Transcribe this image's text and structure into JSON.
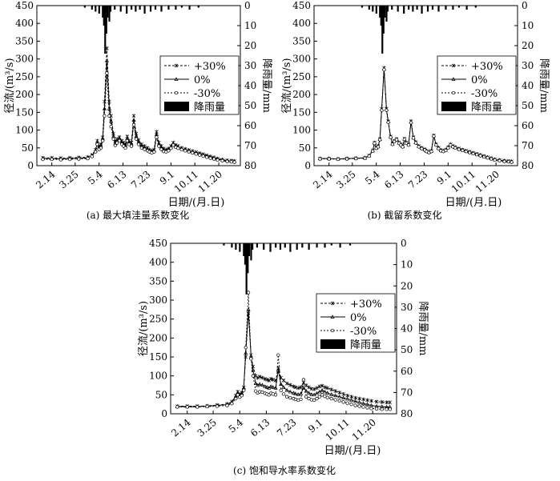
{
  "chart_data": [
    {
      "type": "line",
      "panel_caption": "(a) 最大填洼量系数变化",
      "xlabel": "日期/(月.日)",
      "ylabel": "径流/(m³/s)",
      "y2label": "降雨量/mm",
      "x_ticks": [
        "2.14",
        "3.25",
        "5.4",
        "6.13",
        "7.23",
        "9.1",
        "10.11",
        "11.20"
      ],
      "ylim": [
        0,
        450
      ],
      "y_ticks": [
        0,
        50,
        100,
        150,
        200,
        250,
        300,
        350,
        400,
        450
      ],
      "y2lim": [
        0,
        80
      ],
      "y2_ticks": [
        0,
        10,
        20,
        30,
        40,
        50,
        60,
        70,
        80
      ],
      "legend_position": "right",
      "legend": [
        "+30%",
        "0%",
        "-30%",
        "降雨量"
      ],
      "x": [
        30,
        45,
        60,
        75,
        90,
        105,
        112,
        118,
        121,
        124,
        127,
        130,
        133,
        137,
        141,
        144,
        148,
        151,
        154,
        158,
        162,
        165,
        168,
        171,
        174,
        178,
        182,
        186,
        190,
        195,
        200,
        205,
        208,
        212,
        216,
        220,
        224,
        228,
        232,
        236,
        240,
        244,
        248,
        252,
        256,
        262,
        268,
        274,
        280,
        286,
        292,
        298,
        304,
        310,
        316,
        322,
        330,
        338,
        345,
        350
      ],
      "series": [
        {
          "name": "+30%",
          "values": [
            22,
            22,
            21,
            22,
            23,
            24,
            30,
            45,
            70,
            55,
            60,
            80,
            180,
            330,
            180,
            140,
            90,
            68,
            75,
            80,
            70,
            65,
            60,
            82,
            70,
            65,
            140,
            90,
            72,
            60,
            55,
            50,
            45,
            42,
            45,
            95,
            65,
            55,
            48,
            45,
            48,
            55,
            65,
            58,
            55,
            50,
            47,
            44,
            41,
            38,
            35,
            32,
            29,
            26,
            23,
            20,
            17,
            15,
            14,
            13
          ]
        },
        {
          "name": "0%",
          "values": [
            20,
            20,
            19,
            20,
            21,
            22,
            28,
            42,
            65,
            50,
            55,
            75,
            160,
            295,
            160,
            125,
            82,
            62,
            70,
            75,
            65,
            60,
            55,
            76,
            65,
            60,
            128,
            82,
            66,
            55,
            50,
            46,
            42,
            39,
            42,
            88,
            60,
            50,
            44,
            42,
            45,
            52,
            62,
            55,
            52,
            48,
            45,
            42,
            39,
            36,
            33,
            30,
            27,
            24,
            21,
            18,
            16,
            14,
            13,
            12
          ]
        },
        {
          "name": "-30%",
          "values": [
            18,
            18,
            17,
            18,
            19,
            20,
            26,
            39,
            60,
            46,
            50,
            70,
            140,
            260,
            140,
            110,
            75,
            57,
            64,
            70,
            60,
            55,
            50,
            70,
            60,
            55,
            115,
            75,
            60,
            50,
            46,
            42,
            39,
            36,
            39,
            80,
            55,
            46,
            40,
            39,
            42,
            49,
            58,
            52,
            49,
            45,
            42,
            39,
            36,
            33,
            30,
            27,
            24,
            21,
            19,
            16,
            14,
            12,
            11,
            10
          ]
        }
      ],
      "rainfall": {
        "name": "降雨量",
        "unit": "mm",
        "x": [
          100,
          112,
          118,
          124,
          130,
          132,
          134,
          136,
          138,
          141,
          143,
          150,
          160,
          170,
          178,
          185,
          192,
          200,
          210,
          218,
          228,
          240,
          252,
          262,
          275,
          290
        ],
        "values": [
          1,
          2,
          3,
          4,
          6,
          10,
          24,
          14,
          6,
          8,
          3,
          2,
          3,
          4,
          2,
          3,
          2,
          4,
          3,
          2,
          3,
          2,
          2,
          1,
          2,
          1
        ]
      }
    },
    {
      "type": "line",
      "panel_caption": "(b) 截留系数变化",
      "xlabel": "日期/(月.日)",
      "ylabel": "径流/(m³/s)",
      "y2label": "降雨量/mm",
      "x_ticks": [
        "2.14",
        "3.25",
        "5.4",
        "6.13",
        "7.23",
        "9.1",
        "10.11",
        "11.20"
      ],
      "ylim": [
        0,
        450
      ],
      "y_ticks": [
        0,
        50,
        100,
        150,
        200,
        250,
        300,
        350,
        400,
        450
      ],
      "y2lim": [
        0,
        80
      ],
      "y2_ticks": [
        0,
        10,
        20,
        30,
        40,
        50,
        60,
        70,
        80
      ],
      "legend_position": "right",
      "legend": [
        "+30%",
        "0%",
        "-30%",
        "降雨量"
      ],
      "x": [
        30,
        45,
        60,
        75,
        90,
        105,
        112,
        118,
        121,
        124,
        127,
        130,
        133,
        137,
        141,
        144,
        148,
        151,
        154,
        158,
        162,
        165,
        168,
        171,
        174,
        178,
        182,
        186,
        190,
        195,
        200,
        205,
        208,
        212,
        216,
        220,
        224,
        228,
        232,
        236,
        240,
        244,
        248,
        252,
        256,
        262,
        268,
        274,
        280,
        286,
        292,
        298,
        304,
        310,
        316,
        322,
        330,
        338,
        345,
        350
      ],
      "series": [
        {
          "name": "+30%",
          "values": [
            20,
            20,
            19,
            20,
            21,
            22,
            28,
            42,
            65,
            50,
            55,
            75,
            160,
            275,
            160,
            125,
            82,
            62,
            70,
            75,
            65,
            60,
            55,
            76,
            65,
            60,
            125,
            80,
            66,
            55,
            50,
            46,
            42,
            39,
            42,
            85,
            60,
            50,
            44,
            42,
            45,
            52,
            60,
            55,
            52,
            48,
            45,
            42,
            39,
            36,
            33,
            30,
            27,
            24,
            21,
            18,
            16,
            14,
            13,
            12
          ]
        },
        {
          "name": "0%",
          "values": [
            20,
            20,
            19,
            20,
            21,
            22,
            28,
            42,
            64,
            50,
            54,
            74,
            158,
            272,
            158,
            124,
            81,
            61,
            69,
            74,
            64,
            59,
            54,
            75,
            64,
            59,
            123,
            79,
            65,
            54,
            49,
            45,
            41,
            38,
            41,
            84,
            59,
            49,
            43,
            41,
            44,
            51,
            59,
            54,
            51,
            47,
            44,
            41,
            38,
            35,
            32,
            29,
            26,
            23,
            20,
            17,
            15,
            13,
            12,
            11
          ]
        },
        {
          "name": "-30%",
          "values": [
            19,
            19,
            18,
            19,
            20,
            21,
            27,
            41,
            63,
            49,
            53,
            73,
            156,
            270,
            156,
            122,
            80,
            60,
            68,
            73,
            63,
            58,
            53,
            74,
            63,
            58,
            121,
            78,
            64,
            53,
            48,
            44,
            40,
            37,
            40,
            83,
            58,
            48,
            42,
            40,
            43,
            50,
            58,
            53,
            50,
            46,
            43,
            40,
            37,
            34,
            31,
            28,
            25,
            22,
            19,
            16,
            14,
            12,
            11,
            10
          ]
        }
      ],
      "rainfall": {
        "name": "降雨量",
        "unit": "mm",
        "x": [
          100,
          112,
          118,
          124,
          130,
          132,
          134,
          136,
          138,
          141,
          143,
          150,
          160,
          170,
          178,
          185,
          192,
          200,
          210,
          218,
          228,
          240,
          252,
          262,
          275,
          290
        ],
        "values": [
          1,
          2,
          3,
          4,
          6,
          10,
          24,
          14,
          6,
          8,
          3,
          2,
          3,
          4,
          2,
          3,
          2,
          4,
          3,
          2,
          3,
          2,
          2,
          1,
          2,
          1
        ]
      }
    },
    {
      "type": "line",
      "panel_caption": "(c) 饱和导水率系数变化",
      "xlabel": "日期/(月.日)",
      "ylabel": "径流/(m³/s)",
      "y2label": "降雨量/mm",
      "x_ticks": [
        "2.14",
        "3.25",
        "5.4",
        "6.13",
        "7.23",
        "9.1",
        "10.11",
        "11.20"
      ],
      "ylim": [
        0,
        450
      ],
      "y_ticks": [
        0,
        50,
        100,
        150,
        200,
        250,
        300,
        350,
        400,
        450
      ],
      "y2lim": [
        0,
        80
      ],
      "y2_ticks": [
        0,
        10,
        20,
        30,
        40,
        50,
        60,
        70,
        80
      ],
      "legend_position": "right",
      "legend": [
        "+30%",
        "0%",
        "-30%",
        "降雨量"
      ],
      "x": [
        30,
        45,
        60,
        75,
        90,
        105,
        112,
        118,
        121,
        124,
        127,
        130,
        133,
        137,
        141,
        144,
        148,
        151,
        154,
        158,
        162,
        165,
        168,
        171,
        174,
        178,
        182,
        186,
        190,
        195,
        200,
        205,
        208,
        212,
        216,
        220,
        224,
        228,
        232,
        236,
        240,
        244,
        248,
        252,
        256,
        262,
        268,
        274,
        280,
        286,
        292,
        298,
        304,
        310,
        316,
        322,
        330,
        338,
        345,
        350
      ],
      "series": [
        {
          "name": "+30%",
          "values": [
            20,
            20,
            20,
            21,
            23,
            26,
            32,
            48,
            58,
            52,
            56,
            70,
            150,
            265,
            155,
            125,
            100,
            95,
            98,
            95,
            92,
            90,
            88,
            92,
            90,
            88,
            120,
            95,
            88,
            80,
            76,
            72,
            70,
            68,
            70,
            82,
            75,
            70,
            66,
            65,
            68,
            72,
            74,
            70,
            68,
            64,
            60,
            56,
            52,
            48,
            45,
            42,
            40,
            38,
            36,
            34,
            32,
            31,
            30,
            30
          ]
        },
        {
          "name": "0%",
          "values": [
            19,
            19,
            19,
            20,
            22,
            24,
            30,
            45,
            55,
            49,
            53,
            68,
            160,
            275,
            150,
            115,
            80,
            75,
            78,
            76,
            72,
            70,
            68,
            72,
            70,
            68,
            115,
            78,
            70,
            62,
            58,
            55,
            53,
            51,
            53,
            68,
            60,
            55,
            51,
            50,
            54,
            58,
            62,
            58,
            55,
            51,
            48,
            45,
            42,
            39,
            36,
            33,
            30,
            27,
            25,
            22,
            20,
            19,
            18,
            18
          ]
        },
        {
          "name": "-30%",
          "values": [
            18,
            18,
            18,
            19,
            20,
            22,
            27,
            40,
            50,
            44,
            48,
            62,
            175,
            320,
            145,
            100,
            60,
            55,
            58,
            57,
            54,
            52,
            50,
            54,
            52,
            50,
            155,
            62,
            52,
            45,
            42,
            40,
            38,
            36,
            38,
            90,
            45,
            40,
            37,
            36,
            40,
            45,
            50,
            46,
            43,
            40,
            37,
            34,
            31,
            28,
            25,
            22,
            20,
            18,
            16,
            14,
            13,
            12,
            12,
            12
          ]
        }
      ],
      "rainfall": {
        "name": "降雨量",
        "unit": "mm",
        "x": [
          100,
          112,
          118,
          124,
          130,
          132,
          134,
          136,
          138,
          141,
          143,
          150,
          160,
          170,
          178,
          185,
          192,
          200,
          210,
          218,
          228,
          240,
          252,
          262,
          275,
          290
        ],
        "values": [
          1,
          2,
          3,
          4,
          6,
          10,
          24,
          14,
          6,
          8,
          3,
          2,
          3,
          4,
          2,
          3,
          2,
          4,
          3,
          2,
          3,
          2,
          2,
          1,
          2,
          1
        ]
      }
    }
  ]
}
